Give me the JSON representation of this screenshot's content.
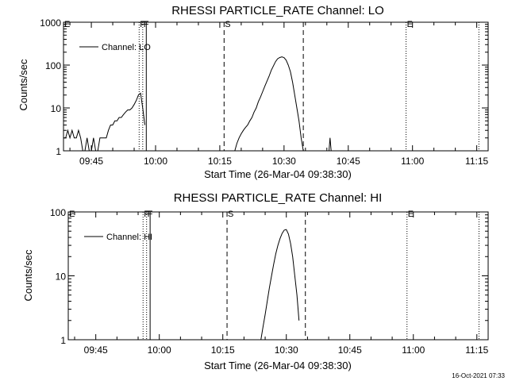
{
  "chart_data": [
    {
      "type": "line",
      "title": "RHESSI PARTICLE_RATE Channel: LO",
      "xlabel": "Start Time (26-Mar-04 09:38:30)",
      "ylabel": "Counts/sec",
      "yscale": "log",
      "ylim": [
        1,
        1000
      ],
      "xlim": [
        "09:38:30",
        "11:17:40"
      ],
      "x_ticks": [
        "09:45",
        "10:00",
        "10:15",
        "10:30",
        "10:45",
        "11:00",
        "11:15"
      ],
      "y_ticks": [
        "1",
        "10",
        "100",
        "1000"
      ],
      "legend": {
        "entries": [
          "Channel: LO"
        ],
        "position": "top-left"
      },
      "markers": [
        {
          "label": "E",
          "time": "09:38:30",
          "style": "solid"
        },
        {
          "label": "F",
          "time": "09:56:10",
          "style": "dotted"
        },
        {
          "label": "F",
          "time": "09:57:00",
          "style": "dotted"
        },
        {
          "label": "",
          "time": "09:57:50",
          "style": "solid"
        },
        {
          "label": "S",
          "time": "10:16:00",
          "style": "dashed"
        },
        {
          "label": "",
          "time": "10:34:30",
          "style": "dashed"
        },
        {
          "label": "E",
          "time": "10:58:30",
          "style": "dotted"
        },
        {
          "label": "",
          "time": "11:15:30",
          "style": "dotted"
        }
      ],
      "series": [
        {
          "name": "Channel: LO",
          "segments": [
            {
              "x": [
                "09:38:30",
                "09:39:00",
                "09:39:30",
                "09:40:00",
                "09:40:30",
                "09:41:00",
                "09:41:30",
                "09:42:00",
                "09:42:30",
                "09:43:00",
                "09:43:30",
                "09:44:00",
                "09:44:30",
                "09:45:00",
                "09:45:30",
                "09:46:00",
                "09:46:30",
                "09:47:00",
                "09:47:30",
                "09:48:00",
                "09:48:30",
                "09:49:00",
                "09:49:30",
                "09:50:00",
                "09:50:30",
                "09:51:00",
                "09:51:30",
                "09:52:00",
                "09:52:30",
                "09:53:00",
                "09:53:30",
                "09:54:00",
                "09:54:30",
                "09:55:00",
                "09:55:30",
                "09:56:00",
                "09:56:30",
                "09:57:00",
                "09:57:30"
              ],
              "y": [
                2,
                2,
                3,
                2,
                3,
                2,
                2,
                3,
                2,
                1,
                1,
                2,
                1,
                1,
                2,
                1,
                1,
                2,
                2,
                2,
                2,
                3,
                4,
                4,
                5,
                5,
                6,
                6,
                7,
                8,
                9,
                9,
                10,
                12,
                15,
                20,
                22,
                10,
                4
              ]
            },
            {
              "x": [
                "10:18:30",
                "10:19:00",
                "10:19:30",
                "10:20:00",
                "10:20:30",
                "10:21:00",
                "10:21:30",
                "10:22:00",
                "10:22:30",
                "10:23:00",
                "10:23:30",
                "10:24:00",
                "10:24:30",
                "10:25:00",
                "10:25:30",
                "10:26:00",
                "10:26:30",
                "10:27:00",
                "10:27:30",
                "10:28:00",
                "10:28:30",
                "10:29:00",
                "10:29:30",
                "10:30:00",
                "10:30:30",
                "10:31:00",
                "10:31:30",
                "10:32:00",
                "10:32:30",
                "10:33:00",
                "10:33:30",
                "10:34:00",
                "10:34:30"
              ],
              "y": [
                1,
                1.5,
                2,
                2.5,
                3,
                3.5,
                4,
                5,
                6,
                8,
                10,
                14,
                18,
                24,
                32,
                42,
                55,
                75,
                95,
                120,
                140,
                150,
                155,
                150,
                130,
                100,
                70,
                40,
                20,
                10,
                5,
                2,
                1
              ]
            },
            {
              "x": [
                "10:40:30",
                "10:40:45",
                "10:41:00"
              ],
              "y": [
                1,
                2,
                1
              ]
            }
          ]
        }
      ]
    },
    {
      "type": "line",
      "title": "RHESSI PARTICLE_RATE Channel: HI",
      "xlabel": "Start Time (26-Mar-04 09:38:30)",
      "ylabel": "Counts/sec",
      "yscale": "log",
      "ylim": [
        1,
        100
      ],
      "xlim": [
        "09:38:30",
        "11:17:40"
      ],
      "x_ticks": [
        "09:45",
        "10:00",
        "10:15",
        "10:30",
        "10:45",
        "11:00",
        "11:15"
      ],
      "y_ticks": [
        "1",
        "10",
        "100"
      ],
      "legend": {
        "entries": [
          "Channel: HI"
        ],
        "position": "top-left"
      },
      "markers": [
        {
          "label": "E",
          "time": "09:38:30",
          "style": "solid"
        },
        {
          "label": "F",
          "time": "09:56:10",
          "style": "dotted"
        },
        {
          "label": "F",
          "time": "09:57:00",
          "style": "dotted"
        },
        {
          "label": "",
          "time": "09:57:50",
          "style": "solid"
        },
        {
          "label": "S",
          "time": "10:16:00",
          "style": "dashed"
        },
        {
          "label": "",
          "time": "10:34:30",
          "style": "dashed"
        },
        {
          "label": "E",
          "time": "10:58:30",
          "style": "dotted"
        },
        {
          "label": "",
          "time": "11:15:30",
          "style": "dotted"
        }
      ],
      "series": [
        {
          "name": "Channel: HI",
          "segments": [
            {
              "x": [
                "10:24:00",
                "10:24:30",
                "10:25:00",
                "10:25:30",
                "10:26:00",
                "10:26:30",
                "10:27:00",
                "10:27:30",
                "10:28:00",
                "10:28:30",
                "10:29:00",
                "10:29:30",
                "10:30:00",
                "10:30:30",
                "10:31:00",
                "10:31:30",
                "10:32:00",
                "10:32:30",
                "10:33:00"
              ],
              "y": [
                1,
                1.6,
                2.5,
                4,
                6.5,
                10,
                15,
                22,
                30,
                38,
                46,
                52,
                53,
                45,
                32,
                20,
                10,
                5,
                2
              ]
            }
          ]
        }
      ]
    }
  ],
  "footer": {
    "timestamp": "16-Oct-2021 07:33"
  }
}
